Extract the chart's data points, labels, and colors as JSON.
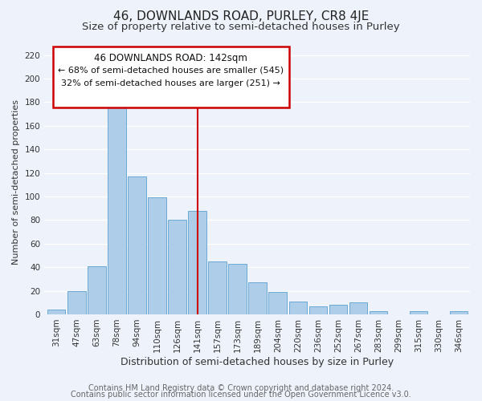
{
  "title": "46, DOWNLANDS ROAD, PURLEY, CR8 4JE",
  "subtitle": "Size of property relative to semi-detached houses in Purley",
  "xlabel": "Distribution of semi-detached houses by size in Purley",
  "ylabel": "Number of semi-detached properties",
  "bins": [
    "31sqm",
    "47sqm",
    "63sqm",
    "78sqm",
    "94sqm",
    "110sqm",
    "126sqm",
    "141sqm",
    "157sqm",
    "173sqm",
    "189sqm",
    "204sqm",
    "220sqm",
    "236sqm",
    "252sqm",
    "267sqm",
    "283sqm",
    "299sqm",
    "315sqm",
    "330sqm",
    "346sqm"
  ],
  "values": [
    4,
    20,
    41,
    180,
    117,
    99,
    80,
    88,
    45,
    43,
    27,
    19,
    11,
    7,
    8,
    10,
    3,
    0,
    3,
    0,
    3
  ],
  "bar_color": "#aecde8",
  "bar_edge_color": "#6aaad4",
  "marker_index": 7,
  "marker_color": "#cc0000",
  "annotation_title": "46 DOWNLANDS ROAD: 142sqm",
  "annotation_line1": "← 68% of semi-detached houses are smaller (545)",
  "annotation_line2": "32% of semi-detached houses are larger (251) →",
  "annotation_box_color": "#ffffff",
  "annotation_box_edge": "#cc0000",
  "ylim": [
    0,
    225
  ],
  "yticks": [
    0,
    20,
    40,
    60,
    80,
    100,
    120,
    140,
    160,
    180,
    200,
    220
  ],
  "footer1": "Contains HM Land Registry data © Crown copyright and database right 2024.",
  "footer2": "Contains public sector information licensed under the Open Government Licence v3.0.",
  "background_color": "#eef2fb",
  "grid_color": "#ffffff",
  "title_fontsize": 11,
  "subtitle_fontsize": 9.5,
  "xlabel_fontsize": 9,
  "ylabel_fontsize": 8,
  "tick_fontsize": 7.5,
  "footer_fontsize": 7,
  "ann_fontsize_title": 8.5,
  "ann_fontsize_body": 8
}
